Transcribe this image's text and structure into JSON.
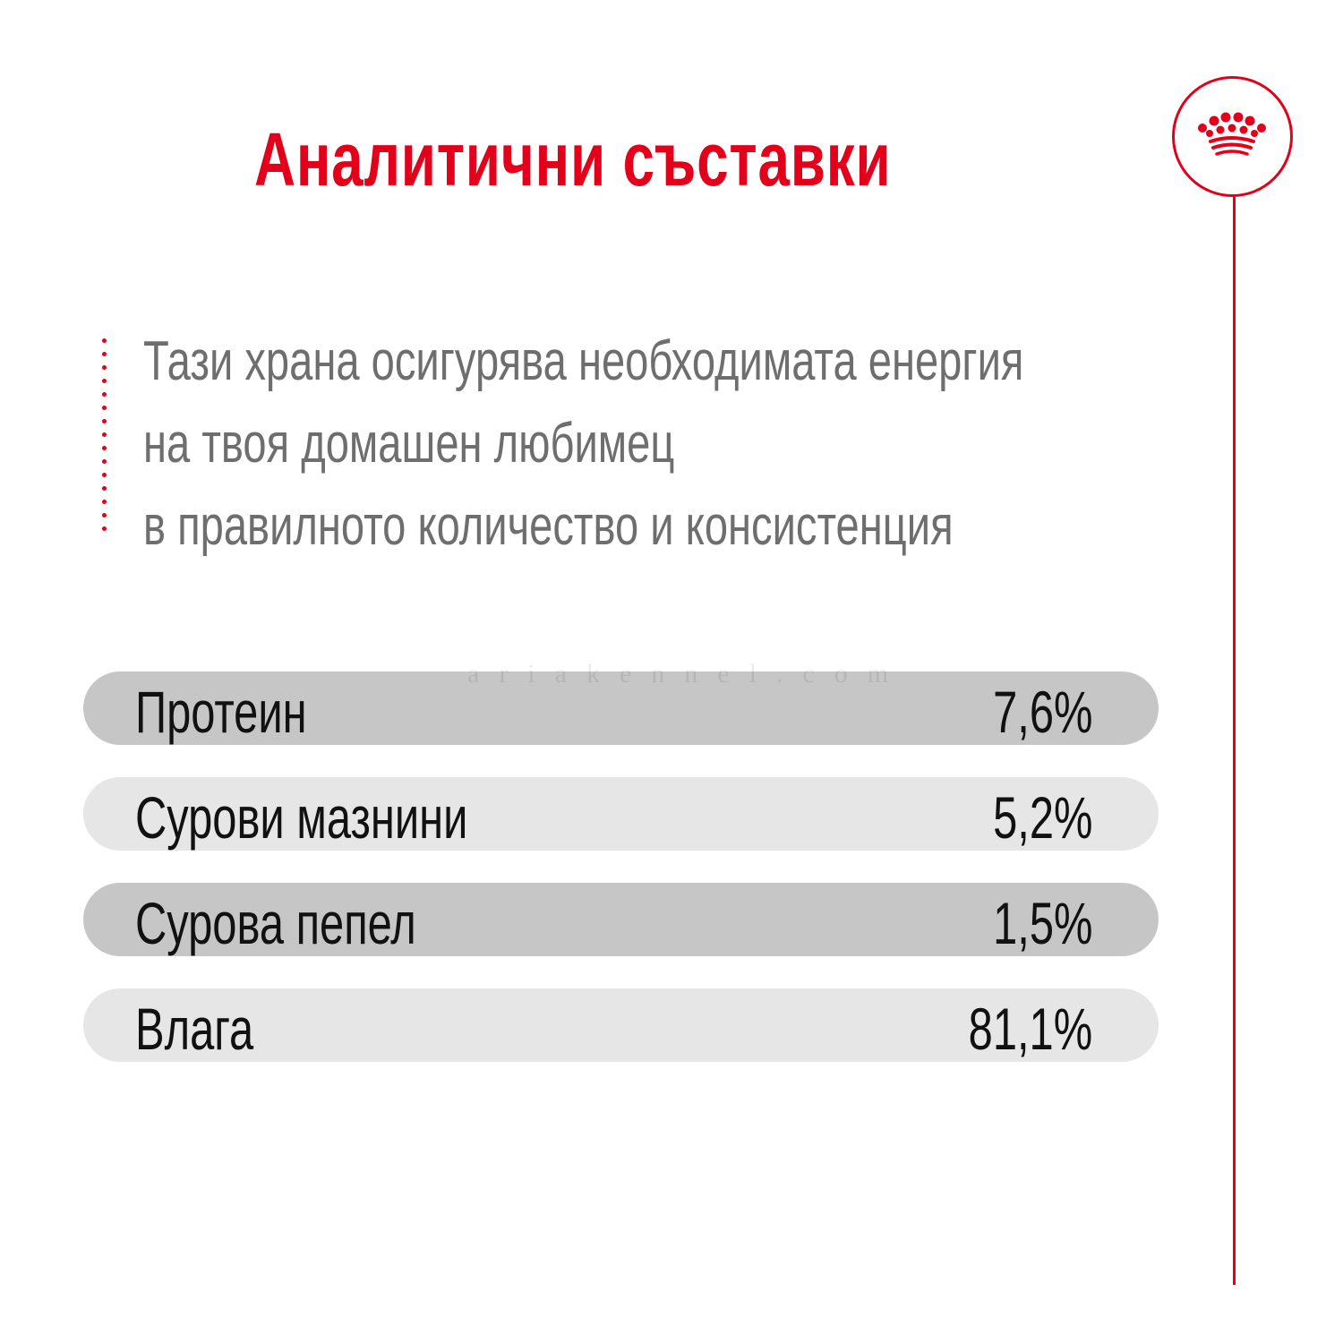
{
  "title": "Аналитични съставки",
  "description": [
    "Тази храна осигурява необходимата енергия",
    "на твоя домашен любимец",
    "в правилното количество и консистенция"
  ],
  "watermark": "ariakennel.com",
  "nutrients": [
    {
      "label": "Протеин",
      "value": "7,6%"
    },
    {
      "label": "Сурови мазнини",
      "value": "5,2%"
    },
    {
      "label": "Сурова пепел",
      "value": "1,5%"
    },
    {
      "label": "Влага",
      "value": "81,1%"
    }
  ],
  "logo": {
    "icon": "crown-icon"
  },
  "colors": {
    "accent": "#E2001A",
    "description_text": "#6e6e6e",
    "row_dark": "#c6c6c6",
    "row_light": "#e6e6e6",
    "row_text": "#111111"
  }
}
